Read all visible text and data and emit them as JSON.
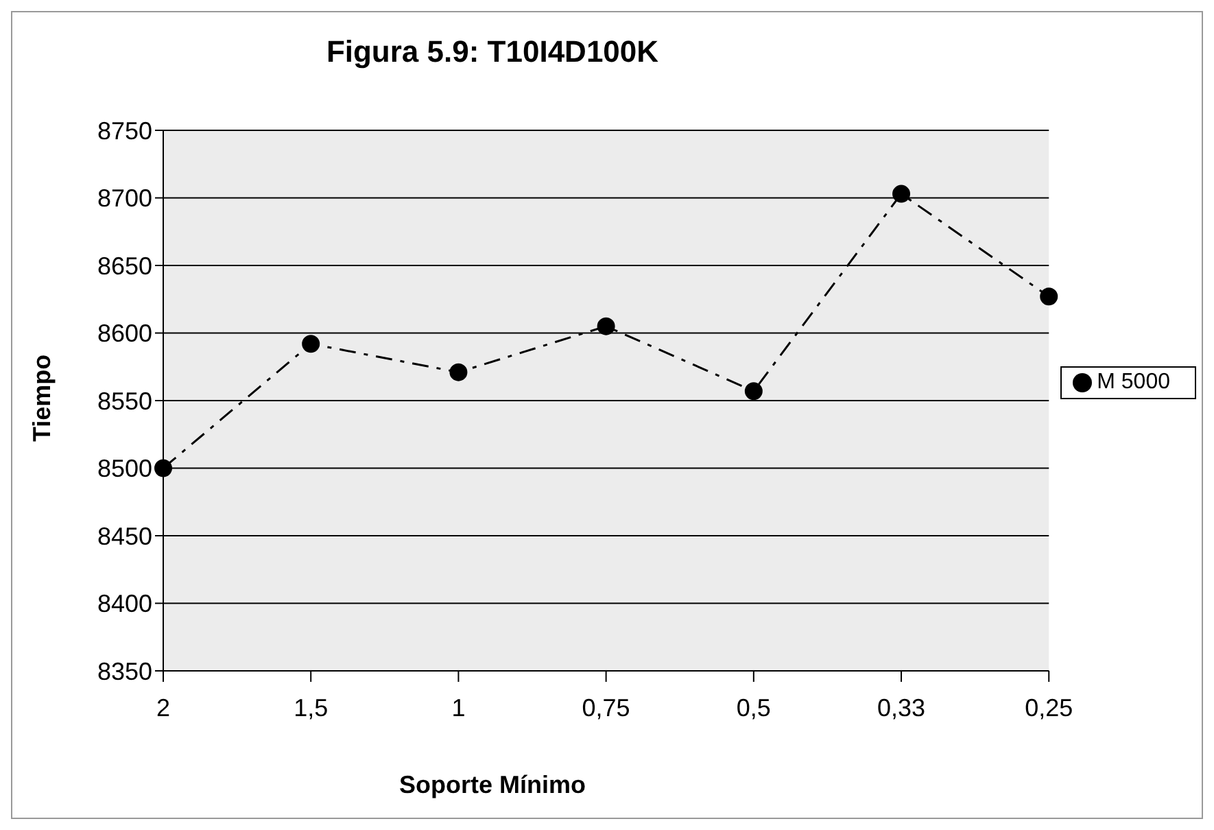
{
  "chart_data": {
    "type": "line",
    "title": "Figura 5.9: T10I4D100K",
    "xlabel": "Soporte Mínimo",
    "ylabel": "Tiempo",
    "categories": [
      "2",
      "1,5",
      "1",
      "0,75",
      "0,5",
      "0,33",
      "0,25"
    ],
    "series": [
      {
        "name": "M 5000",
        "color": "#000000",
        "values": [
          8500,
          8592,
          8571,
          8605,
          8557,
          8703,
          8627
        ]
      }
    ],
    "ylim": [
      8350,
      8750
    ],
    "yticks": [
      8350,
      8400,
      8450,
      8500,
      8550,
      8600,
      8650,
      8700,
      8750
    ],
    "grid": "y",
    "legend": "right",
    "marker": "circle",
    "line_style": "dashed"
  }
}
